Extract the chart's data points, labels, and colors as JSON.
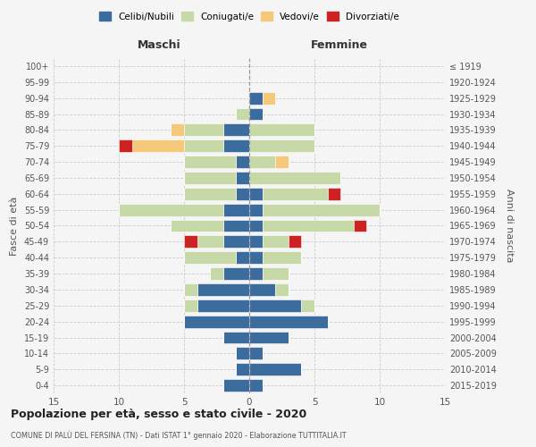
{
  "age_groups": [
    "0-4",
    "5-9",
    "10-14",
    "15-19",
    "20-24",
    "25-29",
    "30-34",
    "35-39",
    "40-44",
    "45-49",
    "50-54",
    "55-59",
    "60-64",
    "65-69",
    "70-74",
    "75-79",
    "80-84",
    "85-89",
    "90-94",
    "95-99",
    "100+"
  ],
  "birth_years": [
    "2015-2019",
    "2010-2014",
    "2005-2009",
    "2000-2004",
    "1995-1999",
    "1990-1994",
    "1985-1989",
    "1980-1984",
    "1975-1979",
    "1970-1974",
    "1965-1969",
    "1960-1964",
    "1955-1959",
    "1950-1954",
    "1945-1949",
    "1940-1944",
    "1935-1939",
    "1930-1934",
    "1925-1929",
    "1920-1924",
    "≤ 1919"
  ],
  "colors": {
    "celibe": "#3c6b9e",
    "coniugato": "#c8d9a8",
    "vedovo": "#f5c87a",
    "divorziato": "#cc2222"
  },
  "maschi": {
    "celibe": [
      2,
      1,
      1,
      2,
      5,
      4,
      4,
      2,
      1,
      2,
      2,
      2,
      1,
      1,
      1,
      2,
      2,
      0,
      0,
      0,
      0
    ],
    "coniugato": [
      0,
      0,
      0,
      0,
      0,
      1,
      1,
      1,
      4,
      2,
      4,
      8,
      4,
      4,
      4,
      3,
      3,
      1,
      0,
      0,
      0
    ],
    "vedovo": [
      0,
      0,
      0,
      0,
      0,
      0,
      0,
      0,
      0,
      0,
      0,
      0,
      0,
      0,
      0,
      4,
      1,
      0,
      0,
      0,
      0
    ],
    "divorziato": [
      0,
      0,
      0,
      0,
      0,
      0,
      0,
      0,
      0,
      1,
      0,
      0,
      0,
      0,
      0,
      1,
      0,
      0,
      0,
      0,
      0
    ]
  },
  "femmine": {
    "nubile": [
      1,
      4,
      1,
      3,
      6,
      4,
      2,
      1,
      1,
      1,
      1,
      1,
      1,
      0,
      0,
      0,
      0,
      1,
      1,
      0,
      0
    ],
    "coniugata": [
      0,
      0,
      0,
      0,
      0,
      1,
      1,
      2,
      3,
      2,
      7,
      9,
      5,
      7,
      2,
      5,
      5,
      0,
      0,
      0,
      0
    ],
    "vedova": [
      0,
      0,
      0,
      0,
      0,
      0,
      0,
      0,
      0,
      0,
      0,
      0,
      0,
      0,
      1,
      0,
      0,
      0,
      1,
      0,
      0
    ],
    "divorziata": [
      0,
      0,
      0,
      0,
      0,
      0,
      0,
      0,
      0,
      1,
      1,
      0,
      1,
      0,
      0,
      0,
      0,
      0,
      0,
      0,
      0
    ]
  },
  "title": "Popolazione per età, sesso e stato civile - 2020",
  "subtitle": "COMUNE DI PALÙ DEL FERSINA (TN) - Dati ISTAT 1° gennaio 2020 - Elaborazione TUTTITALIA.IT",
  "ylabel_left": "Fasce di età",
  "ylabel_right": "Anni di nascita",
  "xlabel_left": "Maschi",
  "xlabel_right": "Femmine",
  "legend_labels": [
    "Celibi/Nubili",
    "Coniugati/e",
    "Vedovi/e",
    "Divorziati/e"
  ],
  "xlim": 15,
  "bg_color": "#f5f5f5",
  "grid_color": "#cccccc"
}
